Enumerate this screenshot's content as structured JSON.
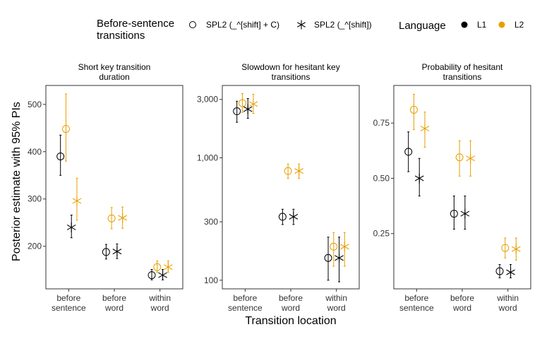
{
  "legend": {
    "shape_title_line1": "Before-sentence",
    "shape_title_line2": "transitions",
    "shape_items": [
      {
        "label": "SPL2 (_^[shift] + C)",
        "marker": "circle"
      },
      {
        "label": "SPL2 (_^[shift])",
        "marker": "asterisk"
      }
    ],
    "color_title": "Language",
    "color_items": [
      {
        "label": "L1",
        "color": "#000000"
      },
      {
        "label": "L2",
        "color": "#E69F00"
      }
    ]
  },
  "axes": {
    "ylabel": "Posterior estimate with 95% PIs",
    "xlabel": "Transition location",
    "categories": [
      [
        "before",
        "sentence"
      ],
      [
        "before",
        "word"
      ],
      [
        "within",
        "word"
      ]
    ]
  },
  "chart_data": [
    {
      "type": "scatter",
      "title_lines": [
        "Short key transition",
        "duration"
      ],
      "scale": "linear",
      "ylim": [
        110,
        540
      ],
      "yticks": [
        200,
        300,
        400,
        500
      ],
      "ytick_labels": [
        "200",
        "300",
        "400",
        "500"
      ],
      "points": [
        {
          "category": "before sentence",
          "language": "L1",
          "marker": "circle",
          "y": 390,
          "lo": 350,
          "hi": 435
        },
        {
          "category": "before sentence",
          "language": "L2",
          "marker": "circle",
          "y": 448,
          "lo": 380,
          "hi": 522
        },
        {
          "category": "before sentence",
          "language": "L1",
          "marker": "asterisk",
          "y": 240,
          "lo": 218,
          "hi": 266
        },
        {
          "category": "before sentence",
          "language": "L2",
          "marker": "asterisk",
          "y": 296,
          "lo": 255,
          "hi": 344
        },
        {
          "category": "before word",
          "language": "L1",
          "marker": "circle",
          "y": 188,
          "lo": 173,
          "hi": 204
        },
        {
          "category": "before word",
          "language": "L2",
          "marker": "circle",
          "y": 259,
          "lo": 237,
          "hi": 282
        },
        {
          "category": "before word",
          "language": "L1",
          "marker": "asterisk",
          "y": 189,
          "lo": 174,
          "hi": 205
        },
        {
          "category": "before word",
          "language": "L2",
          "marker": "asterisk",
          "y": 260,
          "lo": 238,
          "hi": 283
        },
        {
          "category": "within word",
          "language": "L1",
          "marker": "circle",
          "y": 139,
          "lo": 129,
          "hi": 151
        },
        {
          "category": "within word",
          "language": "L2",
          "marker": "circle",
          "y": 156,
          "lo": 145,
          "hi": 169
        },
        {
          "category": "within word",
          "language": "L1",
          "marker": "asterisk",
          "y": 139,
          "lo": 129,
          "hi": 151
        },
        {
          "category": "within word",
          "language": "L2",
          "marker": "asterisk",
          "y": 156,
          "lo": 145,
          "hi": 169
        }
      ]
    },
    {
      "type": "scatter",
      "title_lines": [
        "Slowdown for hesitant key",
        "transitions"
      ],
      "scale": "log",
      "ylim": [
        85,
        3900
      ],
      "yticks": [
        100,
        300,
        1000,
        3000
      ],
      "ytick_labels": [
        "100",
        "300",
        "1,000",
        "3,000"
      ],
      "points": [
        {
          "category": "before sentence",
          "language": "L1",
          "marker": "circle",
          "y": 2400,
          "lo": 1950,
          "hi": 2900
        },
        {
          "category": "before sentence",
          "language": "L2",
          "marker": "circle",
          "y": 2800,
          "lo": 2350,
          "hi": 3350
        },
        {
          "category": "before sentence",
          "language": "L1",
          "marker": "asterisk",
          "y": 2500,
          "lo": 2100,
          "hi": 3050
        },
        {
          "category": "before sentence",
          "language": "L2",
          "marker": "asterisk",
          "y": 2750,
          "lo": 2300,
          "hi": 3300
        },
        {
          "category": "before word",
          "language": "L1",
          "marker": "circle",
          "y": 330,
          "lo": 285,
          "hi": 380
        },
        {
          "category": "before word",
          "language": "L2",
          "marker": "circle",
          "y": 780,
          "lo": 680,
          "hi": 890
        },
        {
          "category": "before word",
          "language": "L1",
          "marker": "asterisk",
          "y": 330,
          "lo": 285,
          "hi": 380
        },
        {
          "category": "before word",
          "language": "L2",
          "marker": "asterisk",
          "y": 780,
          "lo": 680,
          "hi": 890
        },
        {
          "category": "within word",
          "language": "L1",
          "marker": "circle",
          "y": 152,
          "lo": 100,
          "hi": 225
        },
        {
          "category": "within word",
          "language": "L2",
          "marker": "circle",
          "y": 188,
          "lo": 130,
          "hi": 245
        },
        {
          "category": "within word",
          "language": "L1",
          "marker": "asterisk",
          "y": 152,
          "lo": 97,
          "hi": 225
        },
        {
          "category": "within word",
          "language": "L2",
          "marker": "asterisk",
          "y": 188,
          "lo": 130,
          "hi": 245
        }
      ]
    },
    {
      "type": "scatter",
      "title_lines": [
        "Probability of hesitant",
        "transitions"
      ],
      "scale": "linear",
      "ylim": [
        0.0,
        0.92
      ],
      "yticks": [
        0.25,
        0.5,
        0.75
      ],
      "ytick_labels": [
        "0.25",
        "0.50",
        "0.75"
      ],
      "points": [
        {
          "category": "before sentence",
          "language": "L1",
          "marker": "circle",
          "y": 0.62,
          "lo": 0.53,
          "hi": 0.71
        },
        {
          "category": "before sentence",
          "language": "L2",
          "marker": "circle",
          "y": 0.81,
          "lo": 0.72,
          "hi": 0.88
        },
        {
          "category": "before sentence",
          "language": "L1",
          "marker": "asterisk",
          "y": 0.5,
          "lo": 0.42,
          "hi": 0.59
        },
        {
          "category": "before sentence",
          "language": "L2",
          "marker": "asterisk",
          "y": 0.725,
          "lo": 0.64,
          "hi": 0.8
        },
        {
          "category": "before word",
          "language": "L1",
          "marker": "circle",
          "y": 0.34,
          "lo": 0.27,
          "hi": 0.42
        },
        {
          "category": "before word",
          "language": "L2",
          "marker": "circle",
          "y": 0.595,
          "lo": 0.51,
          "hi": 0.67
        },
        {
          "category": "before word",
          "language": "L1",
          "marker": "asterisk",
          "y": 0.34,
          "lo": 0.27,
          "hi": 0.42
        },
        {
          "category": "before word",
          "language": "L2",
          "marker": "asterisk",
          "y": 0.59,
          "lo": 0.51,
          "hi": 0.67
        },
        {
          "category": "within word",
          "language": "L1",
          "marker": "circle",
          "y": 0.08,
          "lo": 0.05,
          "hi": 0.11
        },
        {
          "category": "within word",
          "language": "L2",
          "marker": "circle",
          "y": 0.185,
          "lo": 0.14,
          "hi": 0.23
        },
        {
          "category": "within word",
          "language": "L1",
          "marker": "asterisk",
          "y": 0.075,
          "lo": 0.05,
          "hi": 0.11
        },
        {
          "category": "within word",
          "language": "L2",
          "marker": "asterisk",
          "y": 0.18,
          "lo": 0.13,
          "hi": 0.23
        }
      ]
    }
  ]
}
